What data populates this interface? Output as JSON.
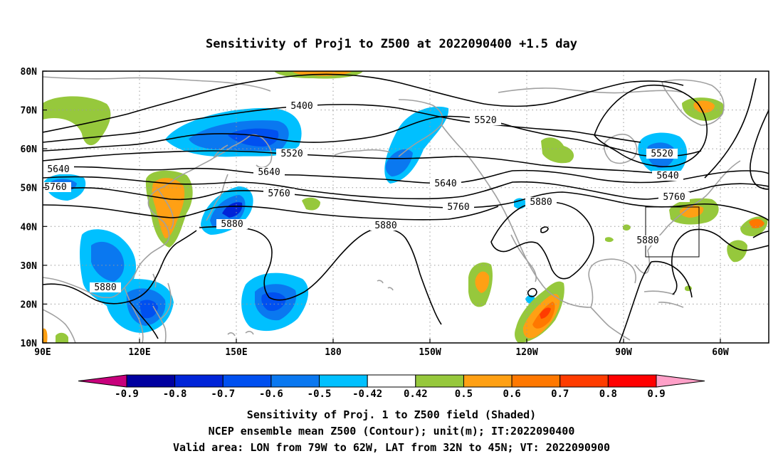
{
  "title": "Sensitivity of Proj1 to Z500 at 2022090400 +1.5 day",
  "axes": {
    "lat_labels": [
      "80N",
      "70N",
      "60N",
      "50N",
      "40N",
      "30N",
      "20N",
      "10N"
    ],
    "lon_labels": [
      "90E",
      "120E",
      "150E",
      "180",
      "150W",
      "120W",
      "90W",
      "60W"
    ]
  },
  "colorbar": {
    "tick_labels": [
      "-0.9",
      "-0.8",
      "-0.7",
      "-0.6",
      "-0.5",
      "-0.42",
      "0.42",
      "0.5",
      "0.6",
      "0.7",
      "0.8",
      "0.9"
    ],
    "colors": [
      "#c8007c",
      "#0000a0",
      "#0024d8",
      "#0050f0",
      "#0a78f0",
      "#00c0ff",
      "#ffffff",
      "#96c83c",
      "#ffa014",
      "#ff7800",
      "#ff3c00",
      "#ff0000",
      "#ffa0c8"
    ]
  },
  "contour_labels": [
    "5400",
    "5520",
    "5520",
    "5520",
    "5640",
    "5640",
    "5640",
    "5640",
    "5760",
    "5760",
    "5760",
    "5760",
    "5880",
    "5880",
    "5880",
    "5880",
    "5880"
  ],
  "captions": {
    "line1": "Sensitivity of Proj. 1 to Z500 field (Shaded)",
    "line2": "NCEP ensemble mean Z500 (Contour); unit(m); IT:2022090400",
    "line3": "Valid area: LON from 79W to 62W, LAT from 32N to 45N; VT: 2022090900"
  }
}
